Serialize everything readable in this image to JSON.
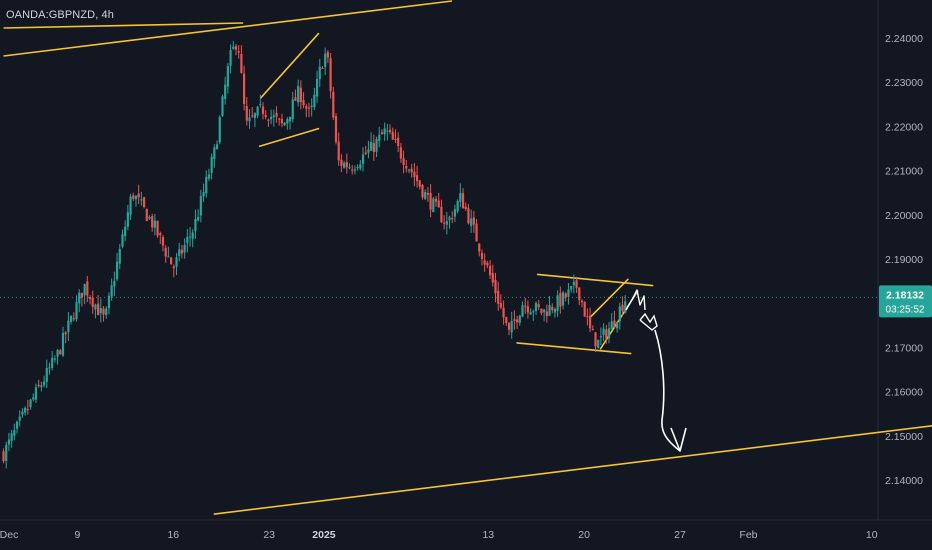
{
  "header": {
    "symbol_label": "OANDA:GBPNZD, 4h"
  },
  "colors": {
    "background": "#131722",
    "up_candle": "#26a69a",
    "down_candle": "#ef5350",
    "trendline": "#f5c431",
    "annotation": "#ffffff",
    "price_label": "#26a69a"
  },
  "chart_data": {
    "type": "candlestick",
    "symbol": "OANDA:GBPNZD",
    "interval": "4h",
    "y_axis": {
      "range": [
        2.1335,
        2.245
      ],
      "ticks": [
        "2.24000",
        "2.23000",
        "2.22000",
        "2.21000",
        "2.20000",
        "2.19000",
        "2.18000",
        "2.17000",
        "2.16000",
        "2.15000",
        "2.14000"
      ]
    },
    "x_axis": {
      "range_days": [
        -22.4,
        16.2
      ],
      "ticks": [
        {
          "label": "Dec",
          "day": -22,
          "bold": false
        },
        {
          "label": "9",
          "day": -17,
          "bold": false
        },
        {
          "label": "16",
          "day": -10,
          "bold": false
        },
        {
          "label": "23",
          "day": -3,
          "bold": false
        },
        {
          "label": "2025",
          "day": 1,
          "bold": true
        },
        {
          "label": "13",
          "day": 13,
          "bold": false
        },
        {
          "label": "20",
          "day": 20,
          "bold": false
        },
        {
          "label": "27",
          "day": 27,
          "bold": false
        },
        {
          "label": "Feb",
          "day": 32,
          "bold": false
        },
        {
          "label": "10",
          "day": 41,
          "bold": false
        }
      ]
    },
    "current_price": {
      "value": "2.18132",
      "countdown": "03:25:52"
    },
    "trend_anchors": [
      {
        "day": -22.4,
        "close": 2.146
      },
      {
        "day": -20.5,
        "close": 2.157
      },
      {
        "day": -18.5,
        "close": 2.168
      },
      {
        "day": -16.5,
        "close": 2.184
      },
      {
        "day": -15.0,
        "close": 2.176
      },
      {
        "day": -13.0,
        "close": 2.205
      },
      {
        "day": -11.5,
        "close": 2.198
      },
      {
        "day": -10.0,
        "close": 2.188
      },
      {
        "day": -8.5,
        "close": 2.197
      },
      {
        "day": -7.0,
        "close": 2.214
      },
      {
        "day": -5.9,
        "close": 2.235
      },
      {
        "day": -5.3,
        "close": 2.24
      },
      {
        "day": -4.7,
        "close": 2.22
      },
      {
        "day": -3.5,
        "close": 2.224
      },
      {
        "day": -2.0,
        "close": 2.22
      },
      {
        "day": -0.8,
        "close": 2.228
      },
      {
        "day": 0.0,
        "close": 2.222
      },
      {
        "day": 0.8,
        "close": 2.234
      },
      {
        "day": 1.2,
        "close": 2.237
      },
      {
        "day": 2.0,
        "close": 2.212
      },
      {
        "day": 3.0,
        "close": 2.211
      },
      {
        "day": 4.5,
        "close": 2.215
      },
      {
        "day": 5.5,
        "close": 2.219
      },
      {
        "day": 7.0,
        "close": 2.212
      },
      {
        "day": 8.5,
        "close": 2.204
      },
      {
        "day": 10.0,
        "close": 2.198
      },
      {
        "day": 11.0,
        "close": 2.204
      },
      {
        "day": 12.0,
        "close": 2.196
      },
      {
        "day": 13.5,
        "close": 2.183
      },
      {
        "day": 14.5,
        "close": 2.173
      },
      {
        "day": 15.5,
        "close": 2.18
      },
      {
        "day": 17.0,
        "close": 2.178
      },
      {
        "day": 18.5,
        "close": 2.181
      },
      {
        "day": 19.5,
        "close": 2.184
      },
      {
        "day": 20.5,
        "close": 2.173
      },
      {
        "day": 21.0,
        "close": 2.171
      },
      {
        "day": 22.0,
        "close": 2.175
      },
      {
        "day": 23.0,
        "close": 2.181
      }
    ],
    "trendlines": [
      {
        "name": "upper-channel-line",
        "points": [
          [
            -22.4,
            2.237
          ],
          [
            -4.8,
            2.243
          ]
        ],
        "ext": [
          [
            -4.8,
            2.243
          ],
          [
            4.8,
            2.2475
          ]
        ]
      },
      {
        "name": "upper-channel-long",
        "points": [
          [
            -22.4,
            2.237
          ],
          [
            5.0,
            2.248
          ]
        ]
      },
      {
        "name": "lower-channel-long",
        "points": [
          [
            -7.0,
            2.1323
          ],
          [
            46.0,
            2.1525
          ]
        ]
      },
      {
        "name": "flag-upper",
        "points": [
          [
            -3.6,
            2.2265
          ],
          [
            0.6,
            2.241
          ]
        ]
      },
      {
        "name": "flag-lower",
        "points": [
          [
            -3.7,
            2.2155
          ],
          [
            0.6,
            2.2195
          ]
        ]
      },
      {
        "name": "range-upper",
        "points": [
          [
            16.6,
            2.1865
          ],
          [
            25.0,
            2.184
          ]
        ]
      },
      {
        "name": "range-lower",
        "points": [
          [
            15.1,
            2.171
          ],
          [
            23.4,
            2.1686
          ]
        ]
      },
      {
        "name": "wedge-upper",
        "points": [
          [
            20.5,
            2.177
          ],
          [
            23.2,
            2.1854
          ]
        ]
      },
      {
        "name": "wedge-lower",
        "points": [
          [
            21.2,
            2.1697
          ],
          [
            23.9,
            2.1827
          ]
        ]
      }
    ]
  }
}
